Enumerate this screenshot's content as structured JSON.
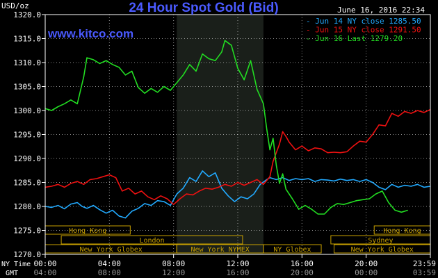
{
  "chart_data": {
    "type": "line",
    "title": "24 Hour Spot Gold (Bid)",
    "website": "www.kitco.com",
    "ylabel": "USD/oz",
    "date_stamp": "June 16, 2016 22:34",
    "ylim": [
      1270,
      1320
    ],
    "yticks": [
      "1320.0",
      "1315.0",
      "1310.0",
      "1305.0",
      "1300.0",
      "1295.0",
      "1290.0",
      "1285.0",
      "1280.0",
      "1275.0",
      "1270.0"
    ],
    "ytick_values": [
      1320,
      1315,
      1310,
      1305,
      1300,
      1295,
      1290,
      1285,
      1280,
      1275,
      1270
    ],
    "x_unit": "hours",
    "xlim": [
      0,
      24
    ],
    "xtick_hours": [
      0,
      4,
      8,
      12,
      16,
      20,
      24
    ],
    "ny_time_label": "NY Time",
    "ny_time_ticks": [
      "00:00",
      "04:00",
      "08:00",
      "12:00",
      "16:00",
      "20:00",
      "23:59"
    ],
    "gmt_label": "GMT",
    "gmt_ticks": [
      "04:00",
      "08:00",
      "12:00",
      "16:00",
      "20:00",
      "00:00",
      "03:59"
    ],
    "shaded_period": [
      8.2,
      13.6
    ],
    "sessions": [
      {
        "name": "Hong Kong",
        "row": 0,
        "start": 0,
        "end": 5.3
      },
      {
        "name": "London",
        "row": 1,
        "start": 1,
        "end": 12.3
      },
      {
        "name": "New York Globex",
        "row": 2,
        "start": 0,
        "end": 8.2
      },
      {
        "name": "New York NYMEX",
        "row": 2,
        "start": 8.2,
        "end": 13.6
      },
      {
        "name": "NY Globex",
        "row": 2,
        "start": 13.6,
        "end": 17.2
      },
      {
        "name": "Sydney",
        "row": 1,
        "start": 17.8,
        "end": 24
      },
      {
        "name": "Hong Kong",
        "row": 0,
        "start": 20.5,
        "end": 24
      },
      {
        "name": "New York Globex",
        "row": 2,
        "start": 18,
        "end": 24
      }
    ],
    "colors": {
      "background": "#000000",
      "frame": "#ffffff",
      "title": "#4a5aff",
      "website": "#4a5aff",
      "session_box": "#c8a000",
      "shaded": "#1a1f1a",
      "grid": "#ffffff"
    },
    "series": [
      {
        "name": "Jun 14 NY close 1285.50",
        "color": "#22aaff",
        "x": [
          0,
          0.4,
          0.8,
          1.2,
          1.6,
          2.0,
          2.3,
          2.6,
          3.0,
          3.4,
          3.8,
          4.2,
          4.6,
          5.0,
          5.4,
          5.8,
          6.2,
          6.6,
          7.0,
          7.4,
          7.8,
          8.2,
          8.6,
          9.0,
          9.4,
          9.8,
          10.2,
          10.6,
          11.0,
          11.4,
          11.8,
          12.2,
          12.6,
          13.0,
          13.4,
          13.8,
          14.0,
          14.4,
          14.8,
          15.2,
          15.6,
          16.0,
          16.4,
          16.8,
          17.2,
          17.6,
          18.0,
          18.4,
          18.8,
          19.2,
          19.6,
          20.0,
          20.4,
          20.8,
          21.2,
          21.6,
          22.0,
          22.4,
          22.8,
          23.2,
          23.6,
          24.0
        ],
        "y": [
          1280.0,
          1279.8,
          1280.2,
          1279.5,
          1280.5,
          1280.8,
          1280.0,
          1279.6,
          1280.2,
          1279.3,
          1278.6,
          1279.2,
          1278.0,
          1277.6,
          1279.0,
          1279.6,
          1280.6,
          1280.2,
          1281.2,
          1281.0,
          1280.2,
          1282.6,
          1283.8,
          1286.0,
          1285.2,
          1287.4,
          1286.2,
          1287.0,
          1283.8,
          1282.2,
          1281.0,
          1282.0,
          1281.6,
          1282.6,
          1284.6,
          1285.6,
          1286.0,
          1285.6,
          1286.0,
          1285.4,
          1285.8,
          1285.6,
          1285.8,
          1285.2,
          1285.6,
          1285.5,
          1285.3,
          1285.7,
          1285.4,
          1285.6,
          1285.2,
          1285.6,
          1285.0,
          1284.0,
          1283.5,
          1284.6,
          1284.0,
          1284.4,
          1284.2,
          1284.6,
          1284.0,
          1284.2
        ]
      },
      {
        "name": "Jun 15 NY close 1291.50",
        "color": "#ee1111",
        "x": [
          0,
          0.4,
          0.8,
          1.2,
          1.6,
          2.0,
          2.4,
          2.8,
          3.2,
          3.6,
          4.0,
          4.4,
          4.8,
          5.2,
          5.6,
          6.0,
          6.4,
          6.8,
          7.2,
          7.6,
          8.0,
          8.4,
          8.8,
          9.2,
          9.6,
          10.0,
          10.4,
          10.8,
          11.2,
          11.6,
          12.0,
          12.4,
          12.8,
          13.2,
          13.6,
          14.0,
          14.2,
          14.4,
          14.6,
          14.8,
          15.0,
          15.2,
          15.6,
          16.0,
          16.4,
          16.8,
          17.2,
          17.6,
          18.0,
          18.4,
          18.8,
          19.2,
          19.6,
          20.0,
          20.4,
          20.8,
          21.2,
          21.6,
          22.0,
          22.4,
          22.8,
          23.2,
          23.6,
          24.0
        ],
        "y": [
          1284.0,
          1284.2,
          1284.6,
          1284.0,
          1284.8,
          1285.2,
          1284.6,
          1285.6,
          1285.8,
          1286.2,
          1286.6,
          1286.0,
          1283.2,
          1283.8,
          1282.6,
          1283.2,
          1282.0,
          1281.4,
          1282.2,
          1281.6,
          1280.4,
          1281.6,
          1282.6,
          1282.4,
          1283.2,
          1283.8,
          1283.6,
          1284.0,
          1284.6,
          1284.2,
          1285.0,
          1284.4,
          1285.0,
          1285.6,
          1284.6,
          1286.2,
          1289.4,
          1291.2,
          1293.0,
          1295.6,
          1294.6,
          1293.4,
          1291.8,
          1292.6,
          1291.6,
          1292.2,
          1292.0,
          1291.2,
          1291.3,
          1291.2,
          1291.4,
          1292.6,
          1293.6,
          1293.4,
          1295.0,
          1297.0,
          1296.8,
          1299.4,
          1298.8,
          1299.8,
          1299.4,
          1300.0,
          1299.6,
          1300.2
        ]
      },
      {
        "name": "Jun 16 Last 1279.20",
        "color": "#22dd22",
        "x": [
          0,
          0.4,
          0.8,
          1.2,
          1.6,
          2.0,
          2.4,
          2.6,
          3.0,
          3.4,
          3.8,
          4.2,
          4.6,
          5.0,
          5.4,
          5.8,
          6.2,
          6.6,
          7.0,
          7.4,
          7.8,
          8.2,
          8.6,
          9.0,
          9.4,
          9.8,
          10.2,
          10.6,
          11.0,
          11.2,
          11.6,
          12.0,
          12.4,
          12.8,
          13.2,
          13.6,
          13.8,
          14.0,
          14.2,
          14.4,
          14.6,
          14.8,
          15.0,
          15.4,
          15.8,
          16.2,
          16.6,
          17.0,
          17.4,
          17.8,
          18.2,
          18.6,
          19.0,
          19.4,
          19.8,
          20.2,
          20.6,
          21.0,
          21.4,
          21.8,
          22.2,
          22.6
        ],
        "y": [
          1300.4,
          1300.0,
          1300.8,
          1301.4,
          1302.2,
          1301.4,
          1307.0,
          1311.0,
          1310.6,
          1309.8,
          1310.4,
          1309.6,
          1309.0,
          1307.4,
          1308.2,
          1304.8,
          1303.6,
          1304.6,
          1303.8,
          1305.0,
          1304.2,
          1305.8,
          1307.4,
          1309.6,
          1308.2,
          1311.8,
          1310.8,
          1310.4,
          1312.2,
          1314.6,
          1313.6,
          1308.8,
          1306.4,
          1310.4,
          1304.4,
          1301.4,
          1296.2,
          1291.8,
          1294.2,
          1288.6,
          1284.8,
          1286.8,
          1283.6,
          1281.6,
          1279.4,
          1280.2,
          1279.4,
          1278.4,
          1278.4,
          1279.8,
          1280.6,
          1280.4,
          1280.8,
          1281.2,
          1281.4,
          1281.6,
          1282.6,
          1283.2,
          1280.8,
          1279.2,
          1278.8,
          1279.2
        ]
      }
    ]
  }
}
